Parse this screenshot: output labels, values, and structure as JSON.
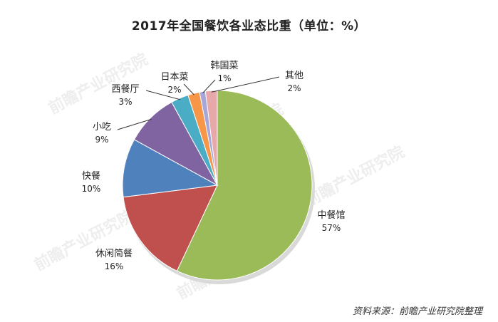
{
  "title": "2017年全国餐饮各业态比重（单位：%）",
  "source": "资料来源：前瞻产业研究院整理",
  "watermark": "前瞻产业研究院",
  "chart_data": {
    "type": "pie",
    "title": "2017年全国餐饮各业态比重（单位：%）",
    "slices": [
      {
        "label": "中餐馆",
        "value": 57,
        "display": "57%",
        "color": "#9bbb59"
      },
      {
        "label": "休闲简餐",
        "value": 16,
        "display": "16%",
        "color": "#c0504d"
      },
      {
        "label": "快餐",
        "value": 10,
        "display": "10%",
        "color": "#4f81bd"
      },
      {
        "label": "小吃",
        "value": 9,
        "display": "9%",
        "color": "#8064a2"
      },
      {
        "label": "西餐厅",
        "value": 3,
        "display": "3%",
        "color": "#4bacc6"
      },
      {
        "label": "日本菜",
        "value": 2,
        "display": "2%",
        "color": "#f79646"
      },
      {
        "label": "韩国菜",
        "value": 1,
        "display": "1%",
        "color": "#a6a6d9"
      },
      {
        "label": "其他",
        "value": 2,
        "display": "2%",
        "color": "#e6a8a8"
      }
    ]
  }
}
